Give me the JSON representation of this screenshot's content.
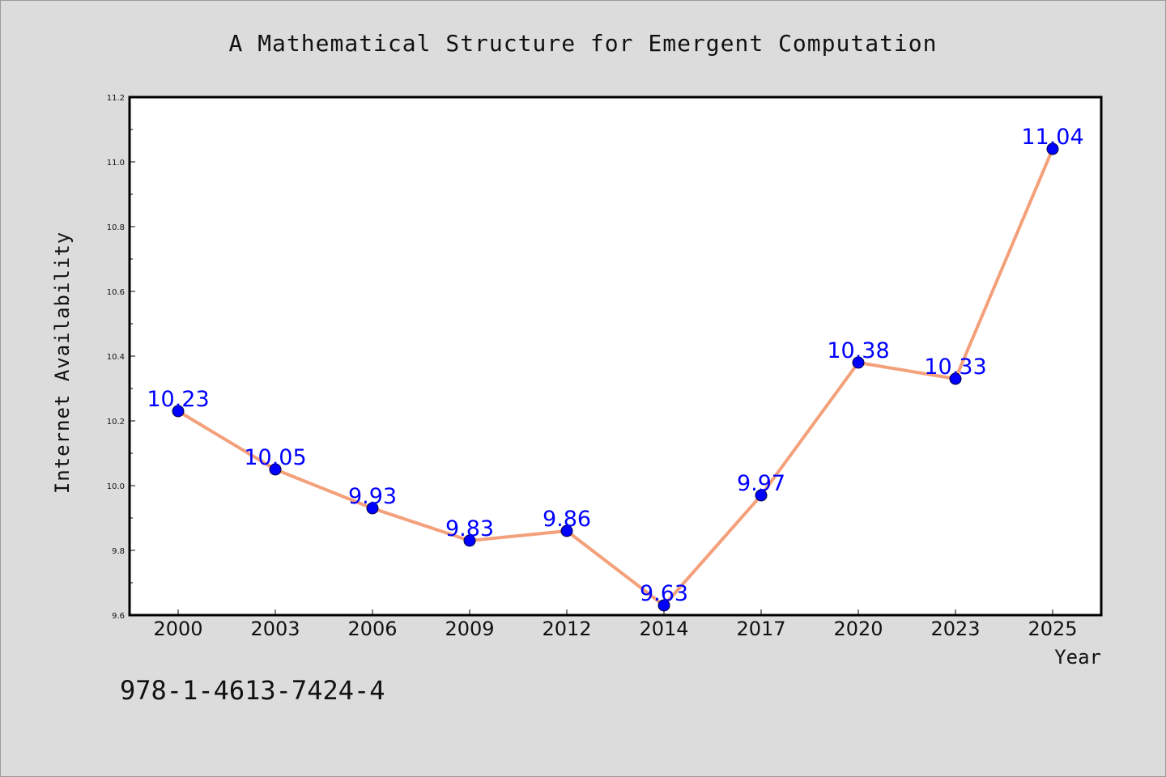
{
  "chart_data": {
    "type": "line",
    "title": "A Mathematical Structure for Emergent Computation",
    "xlabel": "Year",
    "ylabel": "Internet Availability",
    "categories": [
      "2000",
      "2003",
      "2006",
      "2009",
      "2012",
      "2014",
      "2017",
      "2020",
      "2023",
      "2025"
    ],
    "series": [
      {
        "values": [
          10.23,
          10.05,
          9.93,
          9.83,
          9.86,
          9.63,
          9.97,
          10.38,
          10.33,
          11.04
        ]
      }
    ],
    "data_labels": [
      "10.23",
      "10.05",
      "9.93",
      "9.83",
      "9.86",
      "9.63",
      "9.97",
      "10.38",
      "10.33",
      "11.04"
    ],
    "ylim": [
      9.6,
      11.2
    ],
    "yticks": [
      "9.6",
      "9.8",
      "10.0",
      "10.2",
      "10.4",
      "10.6",
      "10.8",
      "11.0",
      "11.2"
    ],
    "grid": false,
    "legend": "none",
    "colors": {
      "line": "#f4a07a",
      "marker": "#0000ff",
      "label": "#0000ff",
      "frame": "#000000",
      "background": "#dcdcdc",
      "plot_area": "#ffffff"
    }
  },
  "annotation": {
    "isbn": "978-1-4613-7424-4"
  }
}
